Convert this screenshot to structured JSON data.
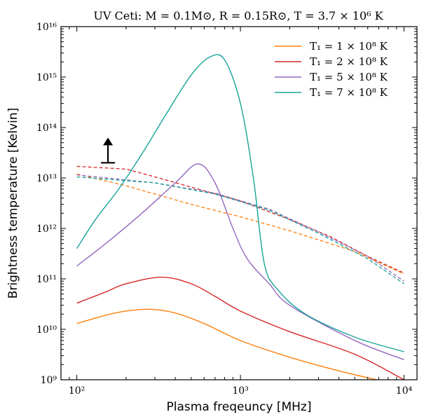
{
  "chart_data": {
    "type": "line",
    "title": "UV Ceti: M = 0.1M⊙, R = 0.15R⊙, T = 3.7 × 10⁶ K",
    "xlabel": "Plasma freqeuncy [MHz]",
    "ylabel": "Brightness temperature [Kelvin]",
    "xscale": "log",
    "yscale": "log",
    "xlim": [
      80,
      12000
    ],
    "ylim": [
      1000000000.0,
      1e+16
    ],
    "x_ticks": [
      {
        "value": 100,
        "label": "10²"
      },
      {
        "value": 1000,
        "label": "10³"
      },
      {
        "value": 10000,
        "label": "10⁴"
      }
    ],
    "y_ticks": [
      {
        "value": 1000000000.0,
        "label": "10⁹"
      },
      {
        "value": 10000000000.0,
        "label": "10¹⁰"
      },
      {
        "value": 100000000000.0,
        "label": "10¹¹"
      },
      {
        "value": 1000000000000.0,
        "label": "10¹²"
      },
      {
        "value": 10000000000000.0,
        "label": "10¹³"
      },
      {
        "value": 100000000000000.0,
        "label": "10¹⁴"
      },
      {
        "value": 1000000000000000.0,
        "label": "10¹⁵"
      },
      {
        "value": 1e+16,
        "label": "10¹⁶"
      }
    ],
    "legend_position": "top-right",
    "series": [
      {
        "name": "T₁ = 1 × 10⁸ K",
        "color": "#ff7f0e",
        "solid": [
          [
            100,
            13000000000.0
          ],
          [
            150,
            19000000000.0
          ],
          [
            200,
            23000000000.0
          ],
          [
            280,
            25000000000.0
          ],
          [
            400,
            21000000000.0
          ],
          [
            600,
            13000000000.0
          ],
          [
            1000,
            6000000000.0
          ],
          [
            2000,
            2800000000.0
          ],
          [
            4000,
            1500000000.0
          ],
          [
            7000,
            980000000.0
          ]
        ],
        "dashed": [
          [
            100,
            12000000000000.0
          ],
          [
            200,
            7000000000000.0
          ],
          [
            500,
            3000000000000.0
          ],
          [
            1000,
            1700000000000.0
          ],
          [
            2000,
            900000000000.0
          ],
          [
            5000,
            350000000000.0
          ],
          [
            10000,
            125000000000.0
          ]
        ]
      },
      {
        "name": "T₁ = 2 × 10⁸ K",
        "color": "#d62728",
        "solid": [
          [
            100,
            33000000000.0
          ],
          [
            150,
            55000000000.0
          ],
          [
            200,
            80000000000.0
          ],
          [
            330,
            108000000000.0
          ],
          [
            500,
            80000000000.0
          ],
          [
            700,
            45000000000.0
          ],
          [
            1000,
            23000000000.0
          ],
          [
            2000,
            9000000000.0
          ],
          [
            5000,
            3200000000.0
          ],
          [
            10000,
            1000000000.0
          ]
        ],
        "dashed": [
          [
            100,
            17000000000000.0
          ],
          [
            200,
            15000000000000.0
          ],
          [
            300,
            10500000000000.0
          ],
          [
            1000,
            3500000000000.0
          ],
          [
            2000,
            1500000000000.0
          ],
          [
            3500,
            700000000000.0
          ],
          [
            6000,
            280000000000.0
          ],
          [
            10000,
            130000000000.0
          ]
        ]
      },
      {
        "name": "T₁ = 5 × 10⁸ K",
        "color": "#9467bd",
        "solid": [
          [
            100,
            180000000000.0
          ],
          [
            150,
            500000000000.0
          ],
          [
            250,
            2000000000000.0
          ],
          [
            400,
            8000000000000.0
          ],
          [
            550,
            19000000000000.0
          ],
          [
            700,
            8000000000000.0
          ],
          [
            900,
            1000000000000.0
          ],
          [
            1100,
            250000000000.0
          ],
          [
            1500,
            80000000000.0
          ],
          [
            2000,
            30000000000.0
          ],
          [
            5000,
            6000000000.0
          ],
          [
            10000,
            2500000000.0
          ]
        ],
        "dashed": [
          [
            100,
            11500000000000.0
          ],
          [
            300,
            8000000000000.0
          ],
          [
            700,
            5000000000000.0
          ],
          [
            1500,
            2400000000000.0
          ],
          [
            3000,
            850000000000.0
          ],
          [
            6000,
            280000000000.0
          ],
          [
            10000,
            90000000000.0
          ]
        ]
      },
      {
        "name": "T₁ = 7 × 10⁸ K",
        "color": "#17a397",
        "solid": [
          [
            100,
            400000000000.0
          ],
          [
            130,
            1500000000000.0
          ],
          [
            180,
            6000000000000.0
          ],
          [
            250,
            30000000000000.0
          ],
          [
            350,
            180000000000000.0
          ],
          [
            500,
            1100000000000000.0
          ],
          [
            650,
            2500000000000000.0
          ],
          [
            800,
            2200000000000000.0
          ],
          [
            1000,
            300000000000000.0
          ],
          [
            1200,
            10000000000000.0
          ],
          [
            1400,
            200000000000.0
          ],
          [
            1700,
            60000000000.0
          ],
          [
            2500,
            20000000000.0
          ],
          [
            5000,
            7000000000.0
          ],
          [
            10000,
            3600000000.0
          ]
        ],
        "dashed": [
          [
            100,
            10500000000000.0
          ],
          [
            300,
            8000000000000.0
          ],
          [
            700,
            4800000000000.0
          ],
          [
            1500,
            2300000000000.0
          ],
          [
            3000,
            800000000000.0
          ],
          [
            6000,
            250000000000.0
          ],
          [
            10000,
            80000000000.0
          ]
        ]
      }
    ],
    "annotations": [
      {
        "type": "lower-limit-arrow",
        "x": 155,
        "y": 20000000000000.0
      }
    ]
  }
}
